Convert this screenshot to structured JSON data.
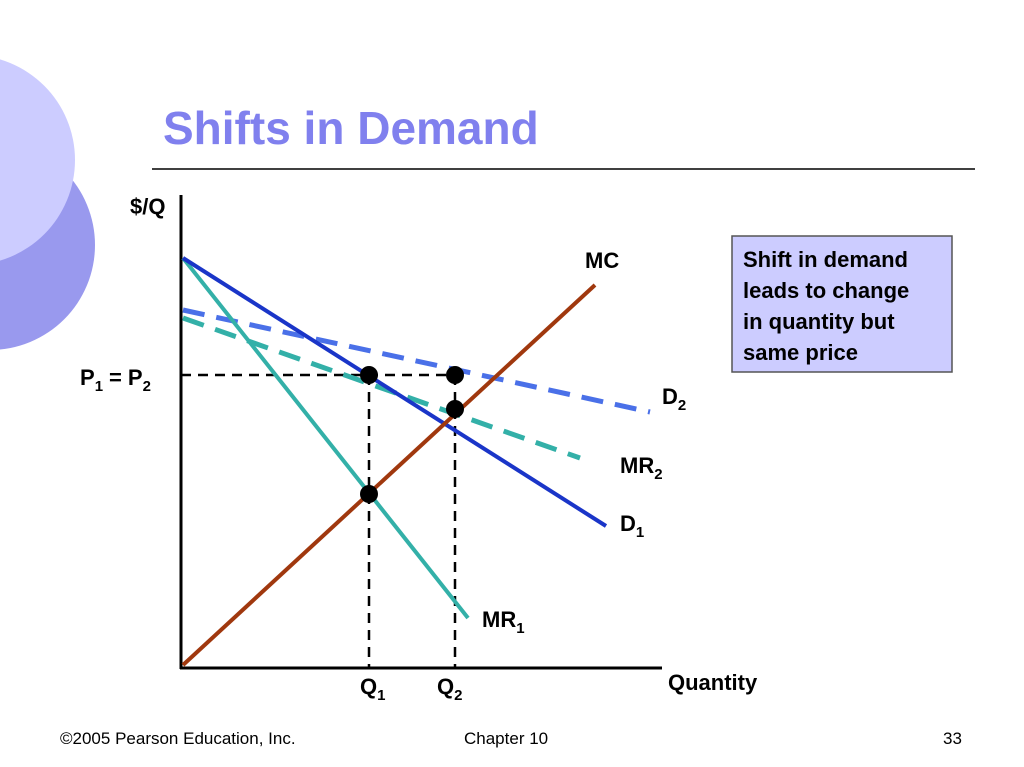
{
  "title": "Shifts in Demand",
  "axes": {
    "y_label": "$/Q",
    "x_label": "Quantity"
  },
  "curve_labels": {
    "mc": "MC",
    "d2": {
      "text": "D",
      "sub": "2"
    },
    "mr2": {
      "text": "MR",
      "sub": "2"
    },
    "d1": {
      "text": "D",
      "sub": "1"
    },
    "mr1": {
      "text": "MR",
      "sub": "1"
    }
  },
  "price_label": {
    "p1": {
      "text": "P",
      "sub": "1"
    },
    "equals": "=",
    "p2": {
      "text": "P",
      "sub": "2"
    }
  },
  "quantity_labels": [
    {
      "text": "Q",
      "sub": "1"
    },
    {
      "text": "Q",
      "sub": "2"
    }
  ],
  "callout": {
    "lines": [
      "Shift in demand",
      "leads to change",
      "in quantity but",
      "same price"
    ]
  },
  "footer": {
    "copyright": "©2005 Pearson Education, Inc.",
    "chapter": "Chapter 10",
    "page": "33"
  }
}
